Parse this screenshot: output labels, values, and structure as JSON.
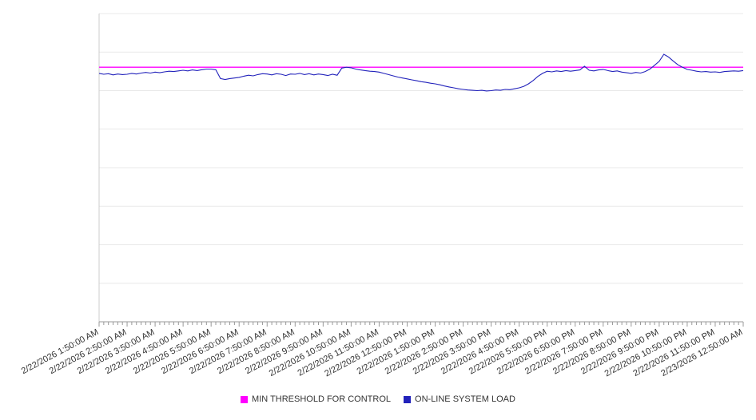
{
  "legend": [
    {
      "label": "MIN THRESHOLD FOR CONTROL",
      "color": "#ff00ff"
    },
    {
      "label": "ON-LINE SYSTEM LOAD",
      "color": "#2222bb"
    }
  ],
  "chart_data": {
    "type": "line",
    "title": "",
    "xlabel": "",
    "ylabel": "",
    "y_axis_labels_visible": false,
    "y_scale_note": "y axis unlabeled in screenshot; values are normalized 0-100 of plot height",
    "ylim": [
      0,
      100
    ],
    "y_gridline_count": 8,
    "grid": true,
    "legend_position": "bottom-center",
    "points_per_label": 6,
    "x_labels": [
      "2/22/2026 1:50:00 AM",
      "2/22/2026 2:50:00 AM",
      "2/22/2026 3:50:00 AM",
      "2/22/2026 4:50:00 AM",
      "2/22/2026 5:50:00 AM",
      "2/22/2026 6:50:00 AM",
      "2/22/2026 7:50:00 AM",
      "2/22/2026 8:50:00 AM",
      "2/22/2026 9:50:00 AM",
      "2/22/2026 10:50:00 AM",
      "2/22/2026 11:50:00 AM",
      "2/22/2026 12:50:00 PM",
      "2/22/2026 1:50:00 PM",
      "2/22/2026 2:50:00 PM",
      "2/22/2026 3:50:00 PM",
      "2/22/2026 4:50:00 PM",
      "2/22/2026 5:50:00 PM",
      "2/22/2026 6:50:00 PM",
      "2/22/2026 7:50:00 PM",
      "2/22/2026 8:50:00 PM",
      "2/22/2026 9:50:00 PM",
      "2/22/2026 10:50:00 PM",
      "2/22/2026 11:50:00 PM",
      "2/23/2026 12:50:00 AM"
    ],
    "series": [
      {
        "name": "MIN THRESHOLD FOR CONTROL",
        "color": "#ff00ff",
        "type": "constant-line",
        "value": 82.6
      },
      {
        "name": "ON-LINE SYSTEM LOAD",
        "color": "#2222bb",
        "type": "line",
        "values": [
          80.6,
          80.3,
          80.5,
          80.1,
          80.4,
          80.2,
          80.3,
          80.6,
          80.4,
          80.7,
          80.9,
          80.7,
          81.0,
          80.8,
          81.1,
          81.3,
          81.2,
          81.4,
          81.6,
          81.4,
          81.7,
          81.5,
          81.8,
          82.0,
          82.0,
          81.8,
          78.9,
          78.6,
          78.9,
          79.1,
          79.3,
          79.7,
          80.0,
          79.8,
          80.2,
          80.5,
          80.4,
          80.1,
          80.5,
          80.3,
          79.9,
          80.4,
          80.3,
          80.6,
          80.2,
          80.5,
          80.1,
          80.4,
          80.2,
          79.9,
          80.3,
          80.0,
          82.3,
          82.6,
          82.4,
          82.0,
          81.7,
          81.5,
          81.3,
          81.2,
          81.0,
          80.6,
          80.2,
          79.8,
          79.4,
          79.1,
          78.8,
          78.5,
          78.2,
          77.9,
          77.7,
          77.4,
          77.2,
          76.9,
          76.5,
          76.2,
          75.9,
          75.6,
          75.4,
          75.2,
          75.1,
          75.0,
          75.1,
          74.9,
          75.0,
          75.2,
          75.1,
          75.4,
          75.3,
          75.6,
          75.9,
          76.4,
          77.2,
          78.3,
          79.6,
          80.6,
          81.3,
          81.1,
          81.4,
          81.2,
          81.5,
          81.3,
          81.5,
          81.7,
          82.9,
          81.6,
          81.4,
          81.7,
          81.9,
          81.5,
          81.2,
          81.4,
          81.0,
          80.8,
          80.6,
          80.9,
          80.7,
          81.2,
          82.0,
          83.2,
          84.5,
          86.8,
          85.9,
          84.6,
          83.4,
          82.6,
          81.9,
          81.6,
          81.3,
          81.1,
          81.2,
          81.0,
          81.1,
          80.9,
          81.2,
          81.3,
          81.4,
          81.3,
          81.5
        ]
      }
    ]
  }
}
